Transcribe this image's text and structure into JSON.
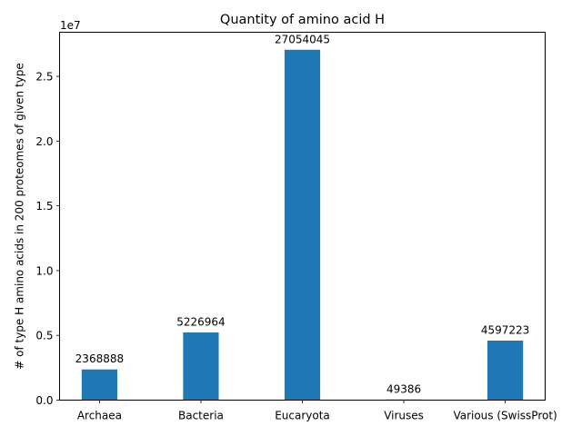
{
  "chart_data": {
    "type": "bar",
    "title": "Quantity of amino acid H",
    "xlabel": "",
    "ylabel": "# of type H amino acids in 200 proteomes of given type",
    "offset_label": "1e7",
    "categories": [
      "Archaea",
      "Bacteria",
      "Eucaryota",
      "Viruses",
      "Various (SwissProt)"
    ],
    "values": [
      2368888,
      5226964,
      27054045,
      49386,
      4597223
    ],
    "data_labels": [
      "2368888",
      "5226964",
      "27054045",
      "49386",
      "4597223"
    ],
    "ylim": [
      0,
      28406747
    ],
    "yticks": [
      0,
      5000000,
      10000000,
      15000000,
      20000000,
      25000000
    ],
    "ytick_labels": [
      "0.0",
      "0.5",
      "1.0",
      "1.5",
      "2.0",
      "2.5"
    ],
    "grid": false,
    "legend": "none",
    "bar_color": "#1f77b4"
  }
}
